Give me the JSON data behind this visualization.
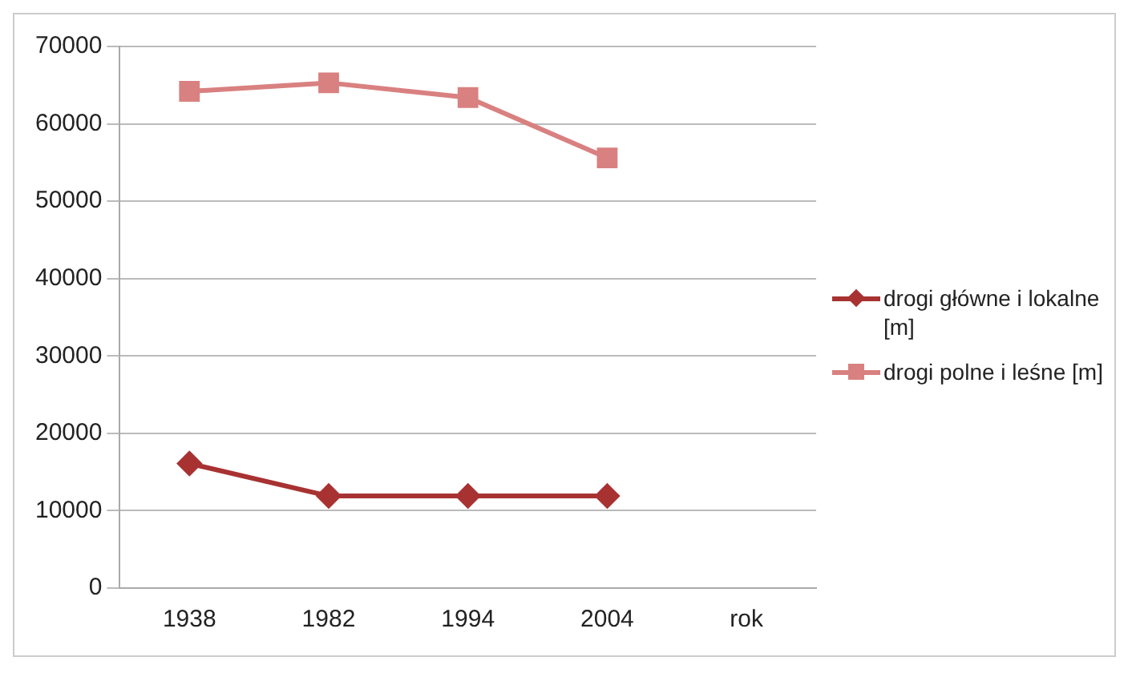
{
  "chart_data": {
    "type": "line",
    "categories": [
      "1938",
      "1982",
      "1994",
      "2004",
      "rok"
    ],
    "series": [
      {
        "name": "drogi główne i lokalne [m]",
        "color": "#a83232",
        "marker": "diamond",
        "values": [
          16100,
          11900,
          11900,
          11900,
          null
        ]
      },
      {
        "name": "drogi polne i leśne [m]",
        "color": "#d98080",
        "marker": "square",
        "values": [
          64200,
          65300,
          63400,
          55600,
          null
        ]
      }
    ],
    "ylim": [
      0,
      70000
    ],
    "yticks": [
      0,
      10000,
      20000,
      30000,
      40000,
      50000,
      60000,
      70000
    ],
    "grid": "y",
    "legend": "right"
  }
}
